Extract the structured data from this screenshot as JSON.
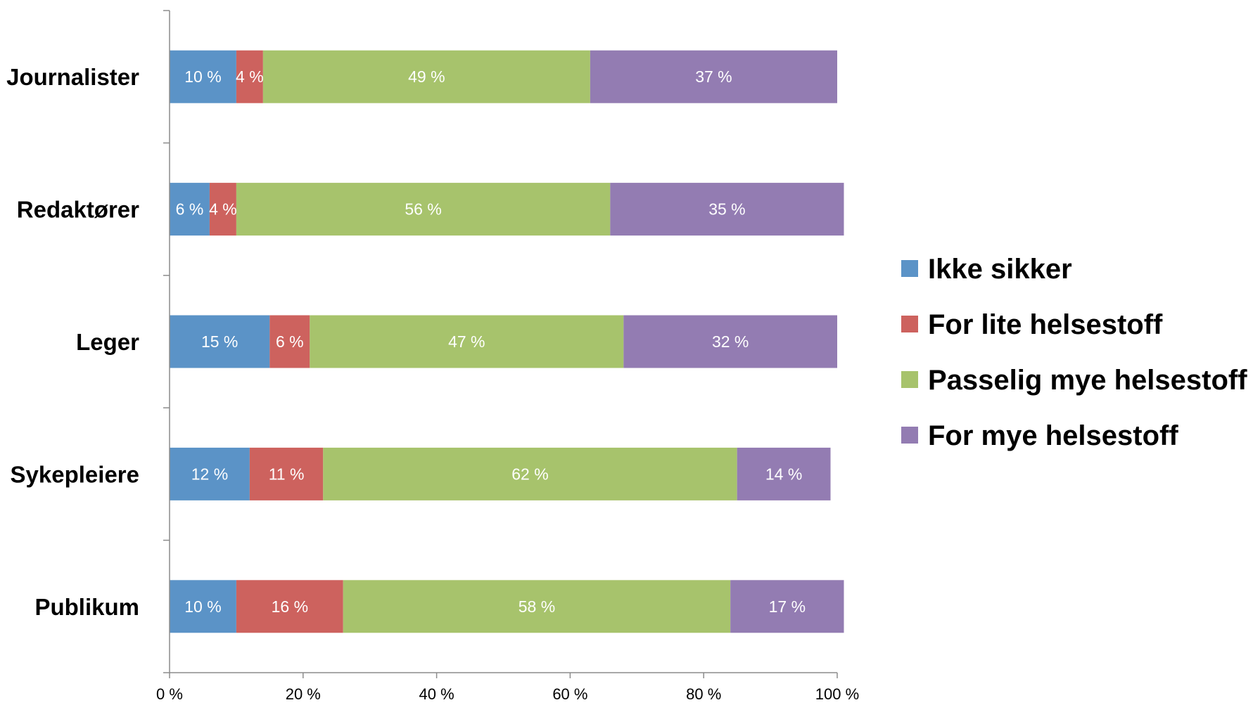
{
  "chart_data": {
    "type": "bar",
    "orientation": "horizontal",
    "stacked": true,
    "categories": [
      "Journalister",
      "Redaktører",
      "Leger",
      "Sykepleiere",
      "Publikum"
    ],
    "series": [
      {
        "name": "Ikke sikker",
        "color": "#5b93c7",
        "values": [
          10,
          6,
          15,
          12,
          10
        ],
        "labels": [
          "10 %",
          "6 %",
          "15 %",
          "12 %",
          "10 %"
        ]
      },
      {
        "name": "For lite helsestoff",
        "color": "#cd625e",
        "values": [
          4,
          4,
          6,
          11,
          16
        ],
        "labels": [
          "4 %",
          "4 %",
          "6 %",
          "11 %",
          "16 %"
        ]
      },
      {
        "name": "Passelig mye helsestoff",
        "color": "#a7c36c",
        "values": [
          49,
          56,
          47,
          62,
          58
        ],
        "labels": [
          "49 %",
          "56 %",
          "47 %",
          "62 %",
          "58 %"
        ]
      },
      {
        "name": "For mye helsestoff",
        "color": "#937cb2",
        "values": [
          37,
          35,
          32,
          14,
          17
        ],
        "labels": [
          "37 %",
          "35 %",
          "32 %",
          "14 %",
          "17 %"
        ]
      }
    ],
    "xlim": [
      0,
      100
    ],
    "xticks": [
      "0 %",
      "20 %",
      "40 %",
      "60 %",
      "80 %",
      "100 %"
    ],
    "grid": false,
    "legend_position": "right"
  }
}
